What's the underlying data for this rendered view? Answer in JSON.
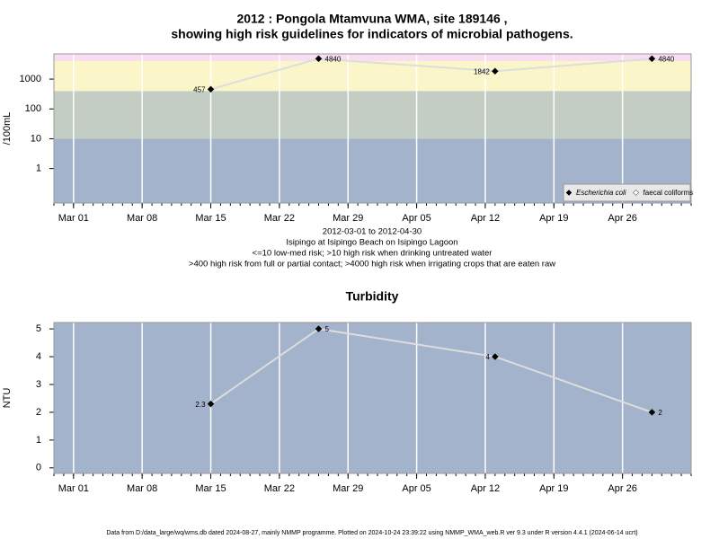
{
  "chart_data": [
    {
      "type": "line",
      "title": [
        "2012 : Pongola Mtamvuna WMA, site 189146 ,",
        "showing high risk guidelines for indicators of microbial pathogens."
      ],
      "ylabel": "/100mL",
      "notes": [
        "2012-03-01 to 2012-04-30",
        "Isipingo at Isipingo Beach on Isipingo Lagoon",
        "<=10 low-med risk; >10 high risk when drinking untreated water",
        ">400 high risk from full or partial contact; >4000 high risk when irrigating crops that are eaten raw"
      ],
      "x": [
        "Mar 15",
        "Mar 26",
        "Apr 13",
        "Apr 29"
      ],
      "series": [
        {
          "name": "Escherichia coli",
          "color": "#000000",
          "values": [
            457,
            4840,
            1842,
            4840
          ]
        },
        {
          "name": "faecal coliforms",
          "color": "#ffffff",
          "values": [
            null,
            null,
            null,
            null
          ]
        }
      ],
      "line_color": "#dddddd",
      "xlim": [
        "Feb 28",
        "May 03"
      ],
      "xticks": [
        "Mar 01",
        "Mar 08",
        "Mar 15",
        "Mar 22",
        "Mar 29",
        "Apr 05",
        "Apr 12",
        "Apr 19",
        "Apr 26"
      ],
      "ylim": [
        0.07,
        7000
      ],
      "yticks": [
        1,
        10,
        100,
        1000
      ],
      "log_y": true,
      "band_breaks": [
        10,
        400,
        4000
      ],
      "band_colors": [
        "#a3b3cb",
        "#c4cdc3",
        "#fbf6c9",
        "#f9def2"
      ],
      "grid": true,
      "legend": "bottom-right"
    },
    {
      "type": "line",
      "title": [
        "Turbidity"
      ],
      "ylabel": "NTU",
      "x": [
        "Mar 15",
        "Mar 26",
        "Apr 13",
        "Apr 29"
      ],
      "series": [
        {
          "name": "Turbidity",
          "color": "#000000",
          "values": [
            2.3,
            5,
            4,
            2
          ]
        }
      ],
      "line_color": "#dddddd",
      "xlim": [
        "Feb 28",
        "May 03"
      ],
      "xticks": [
        "Mar 01",
        "Mar 08",
        "Mar 15",
        "Mar 22",
        "Mar 29",
        "Apr 05",
        "Apr 12",
        "Apr 19",
        "Apr 26"
      ],
      "ylim": [
        -0.2,
        5.23
      ],
      "yticks": [
        0,
        1,
        2,
        3,
        4,
        5
      ],
      "log_y": false,
      "band_colors": [
        "#a3b3cb"
      ],
      "grid": true
    }
  ],
  "footer": "Data from D:/data_large/wq/wms.db dated 2024-08-27, mainly NMMP programme. Plotted on 2024-10-24 23:39:22 using NMMP_WMA_web.R ver 9.3 under R version 4.4.1 (2024-06-14 ucrt)"
}
